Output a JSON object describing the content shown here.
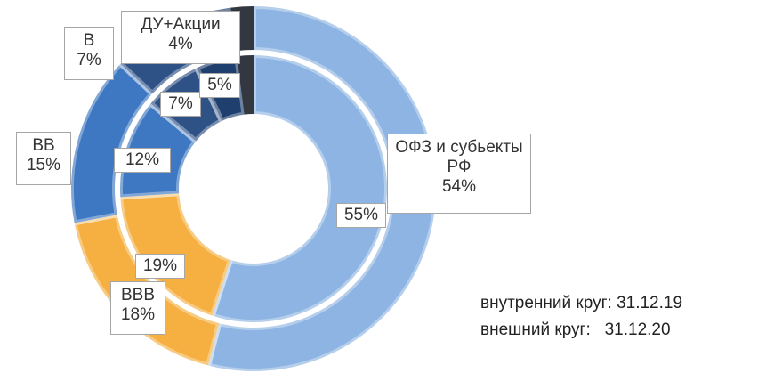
{
  "chart_data": {
    "type": "donut",
    "categories": [
      "ОФЗ и субьекты РФ",
      "BBB",
      "BB",
      "B",
      "ДУ+Акции"
    ],
    "colors": [
      "#8db4e2",
      "#f5b041",
      "#3e78c2",
      "#2e5186",
      "#1f3f6e"
    ],
    "series": [
      {
        "name": "внутренний круг: 31.12.19",
        "values": [
          55,
          19,
          12,
          7,
          5
        ],
        "value_labels": [
          "55%",
          "19%",
          "12%",
          "7%",
          "5%"
        ]
      },
      {
        "name": "внешний круг:   31.12.20",
        "values": [
          54,
          18,
          15,
          7,
          4
        ],
        "value_labels": [
          "54%",
          "18%",
          "15%",
          "7%",
          "4%"
        ]
      }
    ]
  }
}
